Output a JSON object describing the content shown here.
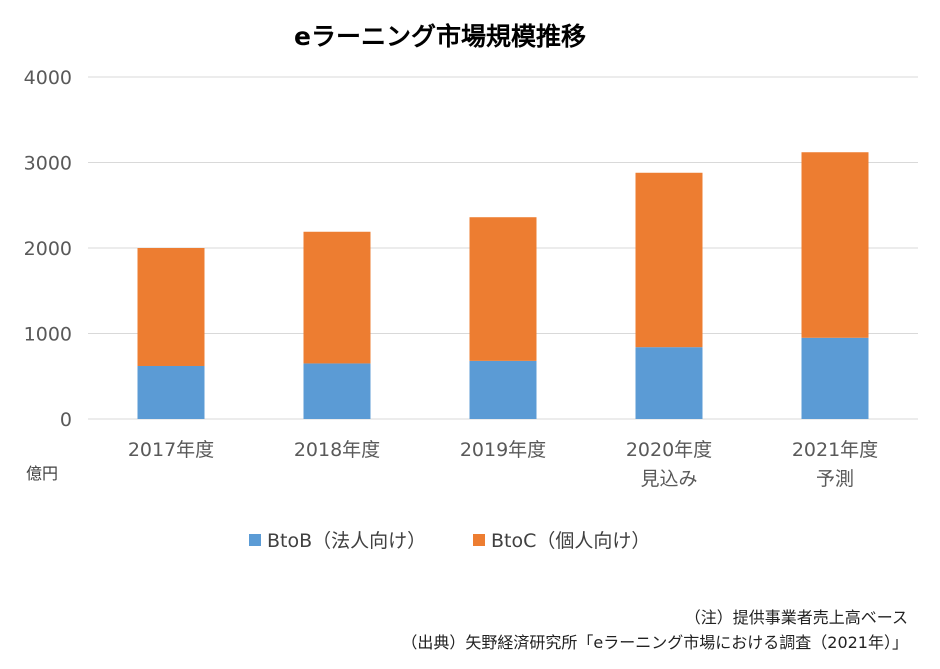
{
  "chart_data": {
    "type": "bar",
    "stacked": true,
    "title": "eラーニング市場規模推移",
    "unit_label": "億円",
    "ylim": [
      0,
      4000
    ],
    "yticks": [
      0,
      1000,
      2000,
      3000,
      4000
    ],
    "grid": true,
    "categories": [
      [
        "2017年度"
      ],
      [
        "2018年度"
      ],
      [
        "2019年度"
      ],
      [
        "2020年度",
        "見込み"
      ],
      [
        "2021年度",
        "予測"
      ]
    ],
    "series": [
      {
        "name": "BtoB（法人向け）",
        "color": "#5b9bd5",
        "values": [
          620,
          650,
          680,
          840,
          950
        ]
      },
      {
        "name": "BtoC（個人向け）",
        "color": "#ed7d31",
        "values": [
          1380,
          1540,
          1680,
          2040,
          2170
        ]
      }
    ],
    "legend_position": "bottom",
    "notes": [
      "（注）提供事業者売上高ベース",
      "（出典）矢野経済研究所「eラーニング市場における調査（2021年）」"
    ]
  }
}
